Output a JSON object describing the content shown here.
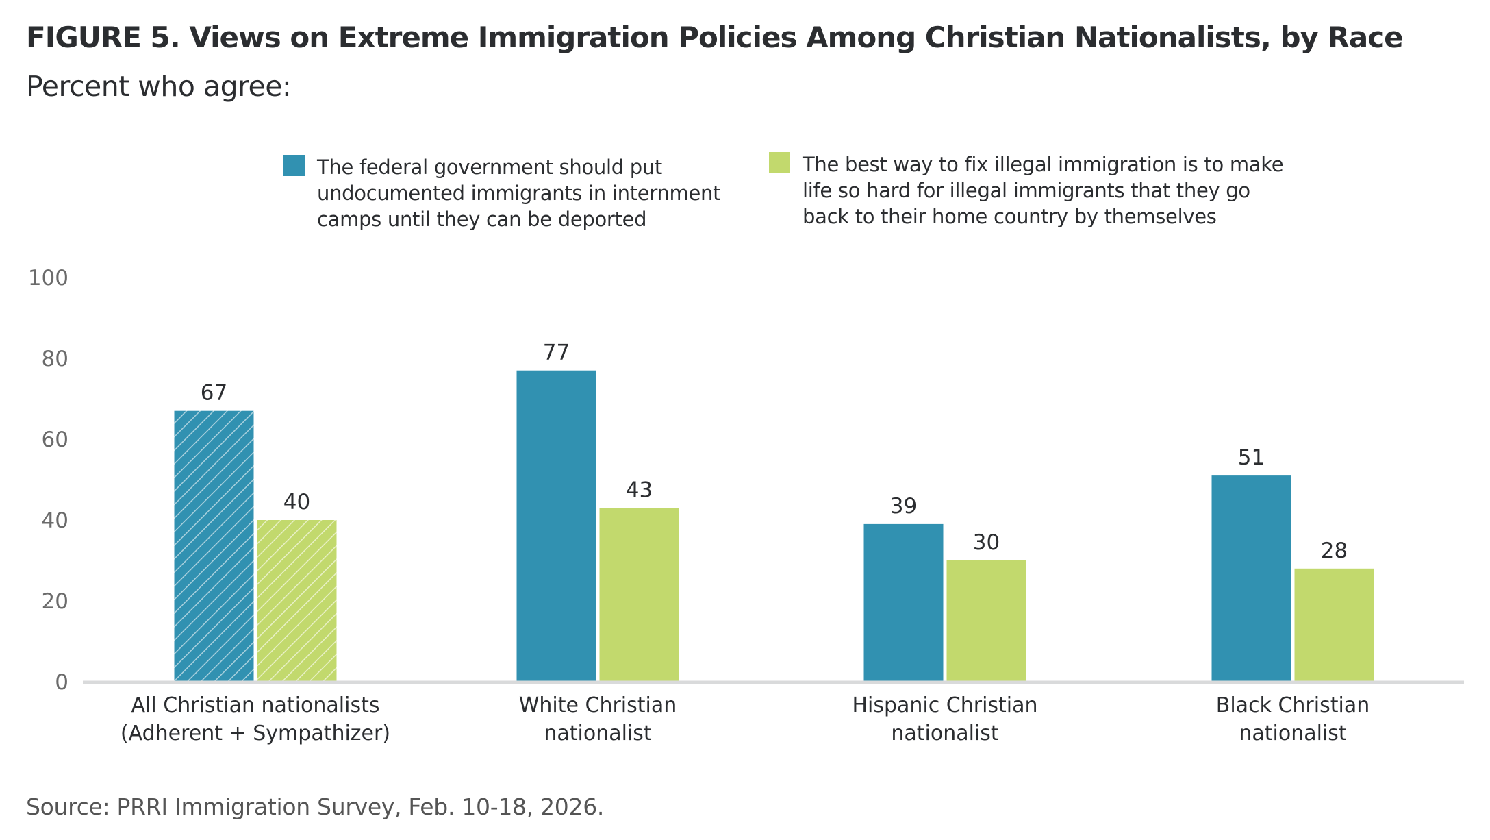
{
  "header": {
    "title": "FIGURE 5.  Views on Extreme Immigration Policies Among Christian Nationalists, by Race",
    "subtitle": "Percent who agree:"
  },
  "legend": [
    {
      "color": "#3191b1",
      "lines": [
        "The federal government should put",
        "undocumented immigrants in internment",
        "camps until they can be deported"
      ]
    },
    {
      "color": "#c2d96d",
      "lines": [
        "The best way to fix illegal immigration is to make",
        "life so hard for illegal immigrants that they go",
        "back to their home country by themselves"
      ]
    }
  ],
  "footer": {
    "source": "Source: PRRI Immigration Survey, Feb. 10-18, 2026."
  },
  "chart_data": {
    "type": "bar",
    "title": "FIGURE 5.  Views on Extreme Immigration Policies Among Christian Nationalists, by Race",
    "subtitle": "Percent who agree:",
    "xlabel": "",
    "ylabel": "",
    "ylim": [
      0,
      100
    ],
    "yticks": [
      0,
      20,
      40,
      60,
      80,
      100
    ],
    "grid": false,
    "legend_position": "top-center",
    "categories": [
      [
        "All Christian nationalists",
        "(Adherent + Sympathizer)"
      ],
      [
        "White Christian",
        "nationalist"
      ],
      [
        "Hispanic Christian",
        "nationalist"
      ],
      [
        "Black Christian",
        "nationalist"
      ]
    ],
    "hatched_categories": [
      0
    ],
    "series": [
      {
        "name": "The federal government should put undocumented immigrants in internment camps until they can be deported",
        "color": "#3191b1",
        "values": [
          67,
          77,
          39,
          51
        ]
      },
      {
        "name": "The best way to fix illegal immigration is to make life so hard for illegal immigrants that they go back to their home country by themselves",
        "color": "#c2d96d",
        "values": [
          40,
          43,
          30,
          28
        ]
      }
    ],
    "axis_color": "#d9dadb"
  }
}
